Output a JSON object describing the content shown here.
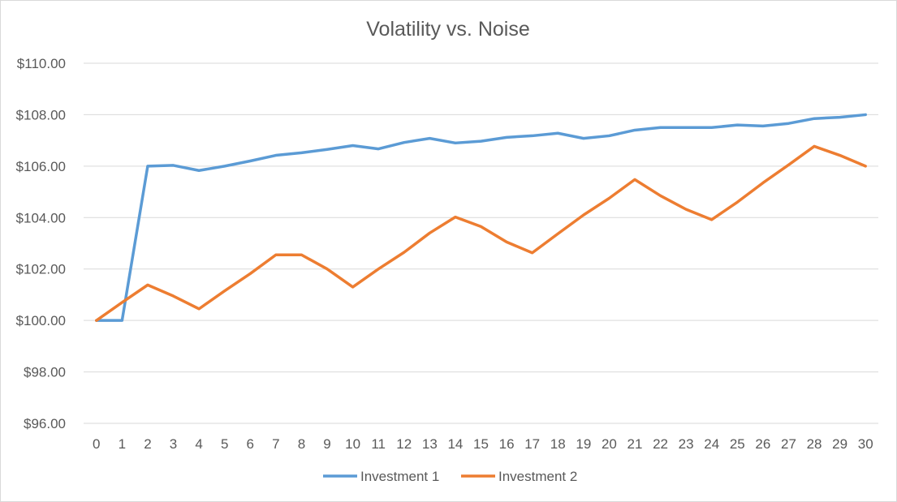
{
  "chart_data": {
    "type": "line",
    "title": "Volatility vs. Noise",
    "xlabel": "",
    "ylabel": "",
    "x": [
      0,
      1,
      2,
      3,
      4,
      5,
      6,
      7,
      8,
      9,
      10,
      11,
      12,
      13,
      14,
      15,
      16,
      17,
      18,
      19,
      20,
      21,
      22,
      23,
      24,
      25,
      26,
      27,
      28,
      29,
      30
    ],
    "ylim": [
      96,
      110
    ],
    "yticks": [
      96,
      98,
      100,
      102,
      104,
      106,
      108,
      110
    ],
    "ytick_labels": [
      "$96.00",
      "$98.00",
      "$100.00",
      "$102.00",
      "$104.00",
      "$106.00",
      "$108.00",
      "$110.00"
    ],
    "grid": true,
    "legend_position": "bottom",
    "series": [
      {
        "name": "Investment 1",
        "color": "#5b9bd5",
        "values": [
          100.0,
          100.0,
          106.0,
          106.03,
          105.83,
          106.0,
          106.2,
          106.42,
          106.52,
          106.65,
          106.8,
          106.67,
          106.92,
          107.08,
          106.9,
          106.97,
          107.12,
          107.18,
          107.28,
          107.08,
          107.18,
          107.4,
          107.5,
          107.5,
          107.5,
          107.6,
          107.56,
          107.66,
          107.85,
          107.9,
          108.0
        ]
      },
      {
        "name": "Investment 2",
        "color": "#ed7d31",
        "values": [
          100.0,
          100.7,
          101.38,
          100.95,
          100.45,
          101.15,
          101.82,
          102.55,
          102.55,
          102.0,
          101.3,
          102.0,
          102.65,
          103.4,
          104.02,
          103.65,
          103.05,
          102.63,
          103.37,
          104.1,
          104.75,
          105.48,
          104.85,
          104.32,
          103.92,
          104.6,
          105.35,
          106.05,
          106.77,
          106.42,
          106.0
        ]
      }
    ]
  }
}
